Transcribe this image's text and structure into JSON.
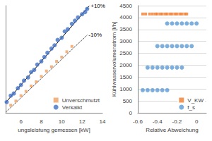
{
  "chart_data": [
    {
      "type": "scatter",
      "x_label": "ungsleistung gemessen [kW]",
      "xlim": [
        4.5,
        14
      ],
      "xticks": [
        6,
        8,
        10,
        12,
        14
      ],
      "ylim": [
        4,
        14
      ],
      "tick_labels": "x",
      "grid": false,
      "legend": "lower right",
      "series": [
        {
          "name": "Unverschmutzt",
          "color": "#f0a060",
          "marker": "rect",
          "x": [
            5.0,
            5.5,
            6.0,
            6.5,
            7.0,
            7.5,
            8.0,
            8.5,
            9.0,
            9.5,
            10.0,
            10.5,
            11.0
          ],
          "values": [
            4.7,
            5.1,
            5.6,
            6.0,
            6.5,
            6.9,
            7.4,
            7.9,
            8.3,
            8.8,
            9.2,
            9.7,
            10.2
          ]
        },
        {
          "name": "Verkalkt",
          "color": "#4472c4",
          "marker": "circle",
          "x": [
            4.6,
            5.0,
            5.3,
            5.7,
            6.0,
            6.3,
            6.7,
            7.0,
            7.3,
            7.6,
            8.0,
            8.3,
            8.6,
            9.0,
            9.3,
            9.6,
            10.0,
            10.3,
            10.6,
            11.0,
            11.3,
            11.6,
            12.0,
            12.3,
            12.5
          ],
          "values": [
            5.0,
            5.6,
            5.8,
            6.3,
            6.6,
            7.0,
            7.3,
            7.8,
            8.0,
            8.5,
            8.8,
            9.2,
            9.6,
            10.0,
            10.3,
            10.8,
            11.0,
            11.6,
            11.8,
            12.3,
            12.6,
            12.9,
            13.2,
            13.4,
            13.7
          ]
        },
        {
          "name": "+10%",
          "type": "line",
          "color": "#000000",
          "line_style": "solid",
          "x": [
            4.5,
            12.7
          ],
          "values": [
            4.95,
            13.97
          ]
        },
        {
          "name": "-10%",
          "type": "line",
          "color": "#000000",
          "line_style": "dotted",
          "x": [
            4.5,
            12.5
          ],
          "values": [
            4.05,
            11.25
          ]
        }
      ]
    },
    {
      "type": "scatter",
      "x_label": "Relative Abweichung",
      "y_label": "Kühlwasservolumenstrom [l/h]",
      "xlim": [
        -0.6,
        0.1
      ],
      "xticks": [
        -0.6,
        -0.4,
        -0.2,
        0
      ],
      "ylim": [
        0,
        4500
      ],
      "yticks": [
        0,
        500,
        1000,
        1500,
        2000,
        2500,
        3000,
        3500,
        4000,
        4500
      ],
      "grid": true,
      "legend": "lower right",
      "series": [
        {
          "name": "V_KW",
          "color": "#ed7d31",
          "marker": "rect",
          "x": [
            -0.55,
            -0.52,
            -0.48,
            -0.45,
            -0.42,
            -0.4,
            -0.37,
            -0.35,
            -0.32,
            -0.3,
            -0.27,
            -0.25,
            -0.22,
            -0.2,
            -0.17,
            -0.15,
            -0.12,
            -0.1
          ],
          "values": [
            4150,
            4150,
            4150,
            4150,
            4150,
            4150,
            4150,
            4150,
            4150,
            4150,
            4150,
            4150,
            4150,
            4150,
            4150,
            4150,
            4150,
            4150
          ]
        },
        {
          "name": "f_s",
          "color": "#5b9bd5",
          "marker": "circle",
          "x": [
            -0.55,
            -0.5,
            -0.45,
            -0.4,
            -0.35,
            -0.3,
            -0.5,
            -0.45,
            -0.4,
            -0.35,
            -0.3,
            -0.25,
            -0.2,
            -0.15,
            -0.4,
            -0.35,
            -0.3,
            -0.25,
            -0.2,
            -0.15,
            -0.1,
            -0.05,
            -0.3,
            -0.25,
            -0.2,
            -0.15,
            -0.1,
            -0.05,
            0.0
          ],
          "values": [
            950,
            950,
            950,
            950,
            950,
            950,
            1900,
            1900,
            1900,
            1900,
            1900,
            1900,
            1900,
            1900,
            2800,
            2800,
            2800,
            2800,
            2800,
            2800,
            2800,
            2800,
            3750,
            3750,
            3750,
            3750,
            3750,
            3750,
            3750
          ]
        }
      ]
    }
  ]
}
